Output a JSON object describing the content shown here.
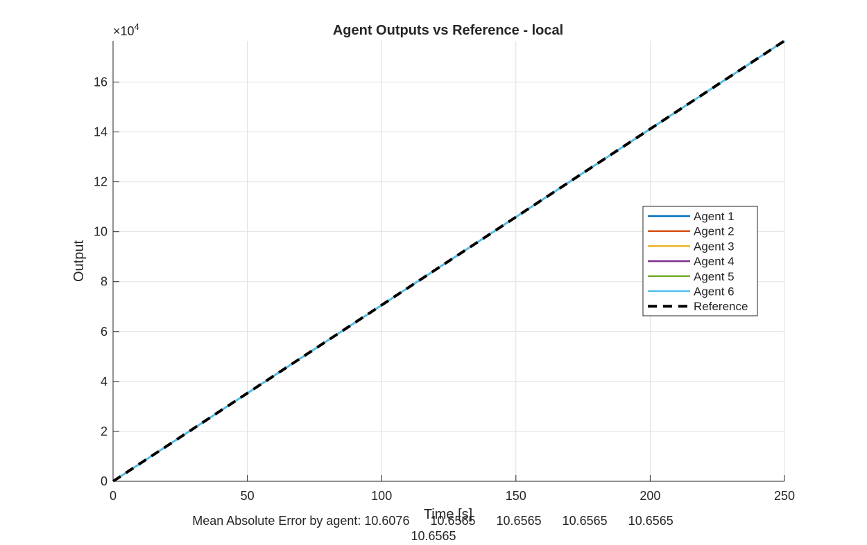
{
  "chart_data": {
    "type": "line",
    "title": "Agent Outputs vs Reference - local",
    "xlabel": "Time [s]",
    "ylabel": "Output",
    "y_exponent_label": "×10",
    "y_exponent_power": "4",
    "y_exponent": 4,
    "xlim": [
      0,
      250
    ],
    "ylim": [
      0,
      176500
    ],
    "x_ticks": [
      0,
      50,
      100,
      150,
      200,
      250
    ],
    "x_tick_labels": [
      "0",
      "50",
      "100",
      "150",
      "200",
      "250"
    ],
    "y_ticks": [
      0,
      20000,
      40000,
      60000,
      80000,
      100000,
      120000,
      140000,
      160000
    ],
    "y_tick_labels": [
      "0",
      "2",
      "4",
      "6",
      "8",
      "10",
      "12",
      "14",
      "16"
    ],
    "grid": true,
    "legend_position": "right",
    "series": [
      {
        "name": "Agent 1",
        "color": "#0072BD",
        "style": "solid",
        "x": [
          0,
          250
        ],
        "y": [
          0,
          176500
        ]
      },
      {
        "name": "Agent 2",
        "color": "#D95319",
        "style": "solid",
        "x": [
          0,
          250
        ],
        "y": [
          0,
          176500
        ]
      },
      {
        "name": "Agent 3",
        "color": "#EDB120",
        "style": "solid",
        "x": [
          0,
          250
        ],
        "y": [
          0,
          176500
        ]
      },
      {
        "name": "Agent 4",
        "color": "#7E2F8E",
        "style": "solid",
        "x": [
          0,
          250
        ],
        "y": [
          0,
          176500
        ]
      },
      {
        "name": "Agent 5",
        "color": "#77AC30",
        "style": "solid",
        "x": [
          0,
          250
        ],
        "y": [
          0,
          176500
        ]
      },
      {
        "name": "Agent 6",
        "color": "#4DBEEE",
        "style": "solid",
        "x": [
          0,
          250
        ],
        "y": [
          0,
          176500
        ]
      },
      {
        "name": "Reference",
        "color": "#000000",
        "style": "dashed",
        "x": [
          0,
          250
        ],
        "y": [
          0,
          176500
        ]
      }
    ],
    "annotation": {
      "line1": "Mean Absolute Error by agent: 10.6076      10.6565      10.6565      10.6565      10.6565",
      "line2": "10.6565"
    }
  }
}
